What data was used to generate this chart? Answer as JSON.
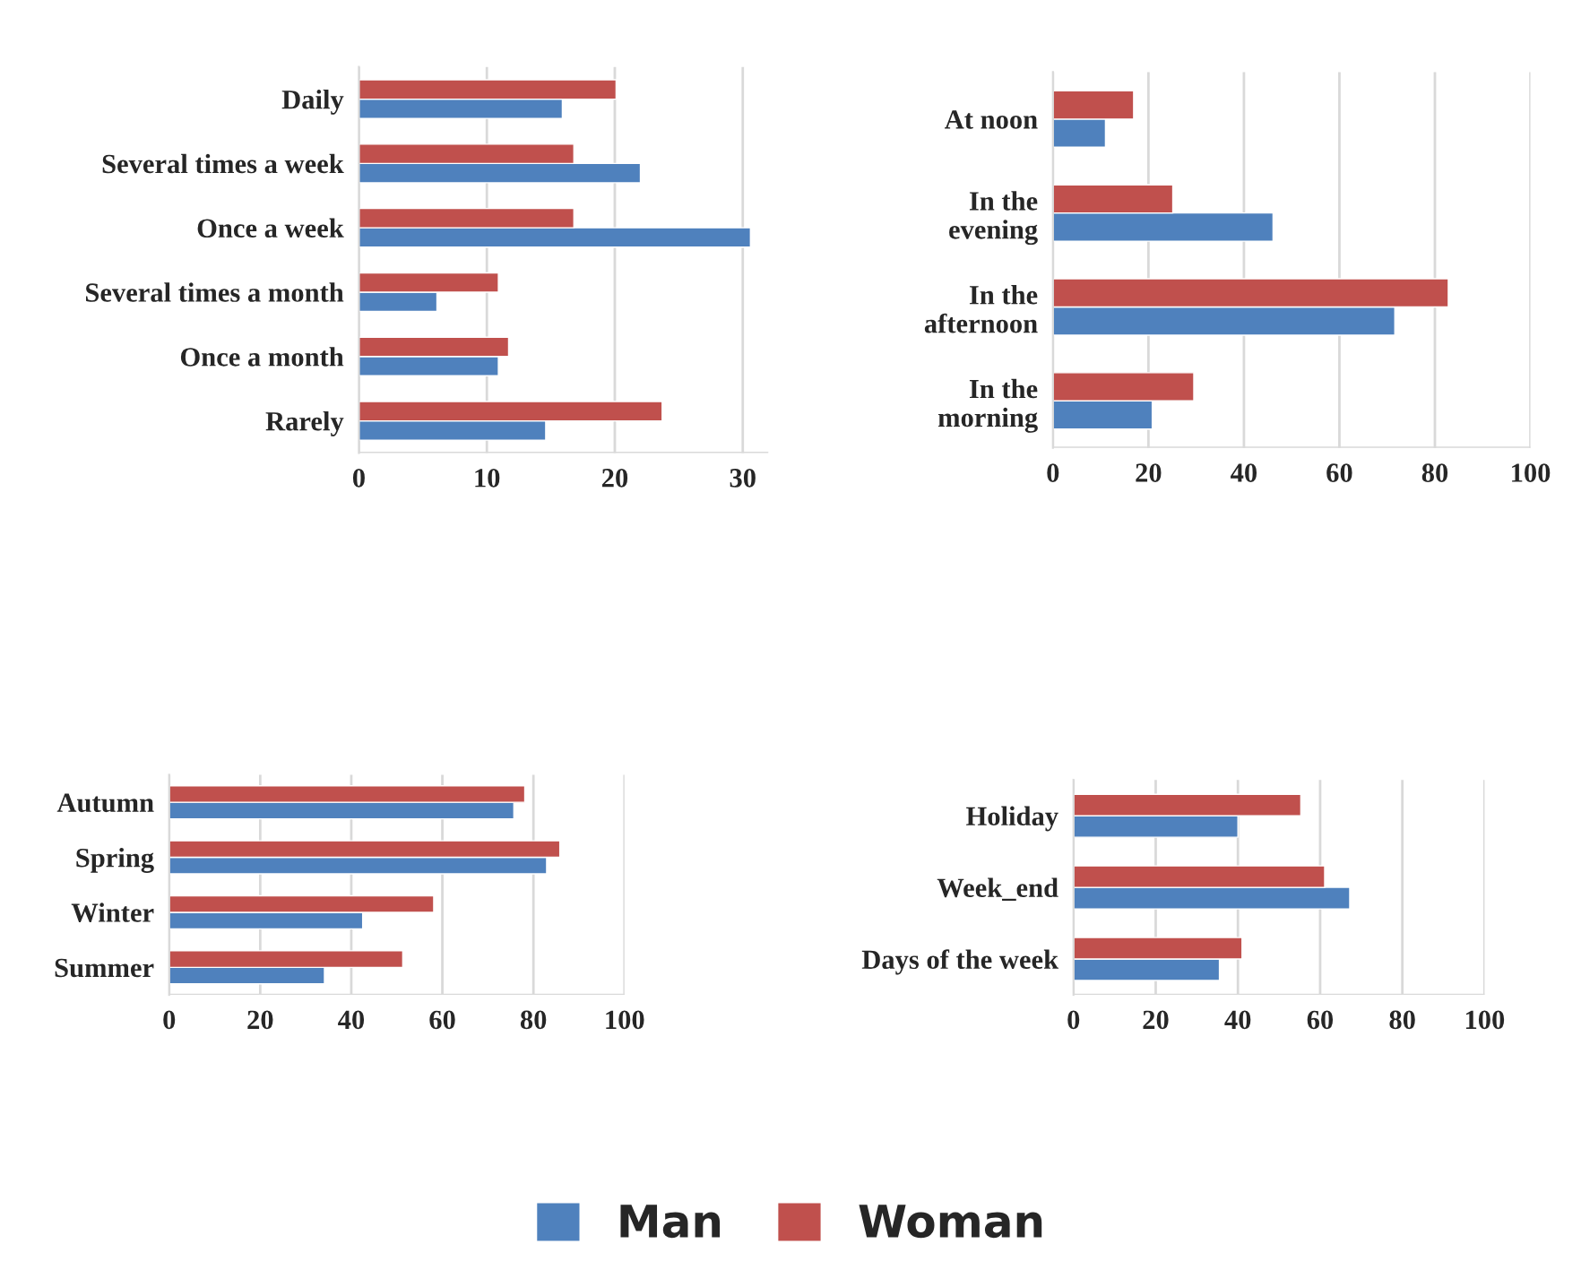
{
  "chart_data": [
    {
      "type": "bar",
      "orientation": "horizontal",
      "categories": [
        "Daily",
        "Several times a week",
        "Once a week",
        "Several times a month",
        "Once a month",
        "Rarely"
      ],
      "series": [
        {
          "name": "Man",
          "color": "#4f81bd",
          "values": [
            15.9,
            22.0,
            30.6,
            6.1,
            10.9,
            14.6
          ]
        },
        {
          "name": "Woman",
          "color": "#c0504d",
          "values": [
            20.1,
            16.8,
            16.8,
            10.9,
            11.7,
            23.7
          ]
        }
      ],
      "xlim": [
        0,
        32
      ],
      "xticks": [
        0,
        10,
        20,
        30
      ],
      "grid": "x",
      "legend": "bottom"
    },
    {
      "type": "bar",
      "orientation": "horizontal",
      "categories": [
        "At noon",
        "In the\nevening",
        "In the\nafternoon",
        "In the\nmorning"
      ],
      "series": [
        {
          "color": "#4f81bd",
          "values": [
            11.0,
            46.1,
            71.6,
            20.8
          ]
        },
        {
          "color": "#c0504d",
          "values": [
            16.9,
            25.1,
            82.8,
            29.5
          ]
        }
      ],
      "xlim": [
        0,
        100
      ],
      "xticks": [
        0,
        20,
        40,
        60,
        80,
        100
      ],
      "grid": "x"
    },
    {
      "type": "bar",
      "orientation": "horizontal",
      "categories": [
        "Autumn",
        "Spring",
        "Winter",
        "Summer"
      ],
      "series": [
        {
          "color": "#4f81bd",
          "values": [
            75.7,
            82.9,
            42.5,
            34.1
          ]
        },
        {
          "color": "#c0504d",
          "values": [
            78.1,
            85.8,
            58.1,
            51.3
          ]
        }
      ],
      "xlim": [
        0,
        100
      ],
      "xticks": [
        0,
        20,
        40,
        60,
        80,
        100
      ],
      "grid": "x"
    },
    {
      "type": "bar",
      "orientation": "horizontal",
      "categories": [
        "Holiday",
        "Week_end",
        "Days of the week"
      ],
      "series": [
        {
          "color": "#4f81bd",
          "values": [
            40.0,
            67.2,
            35.5
          ]
        },
        {
          "color": "#c0504d",
          "values": [
            55.3,
            61.1,
            41.0
          ]
        }
      ],
      "xlim": [
        0,
        100
      ],
      "xticks": [
        0,
        20,
        40,
        60,
        80,
        100
      ],
      "grid": "x"
    }
  ]
}
